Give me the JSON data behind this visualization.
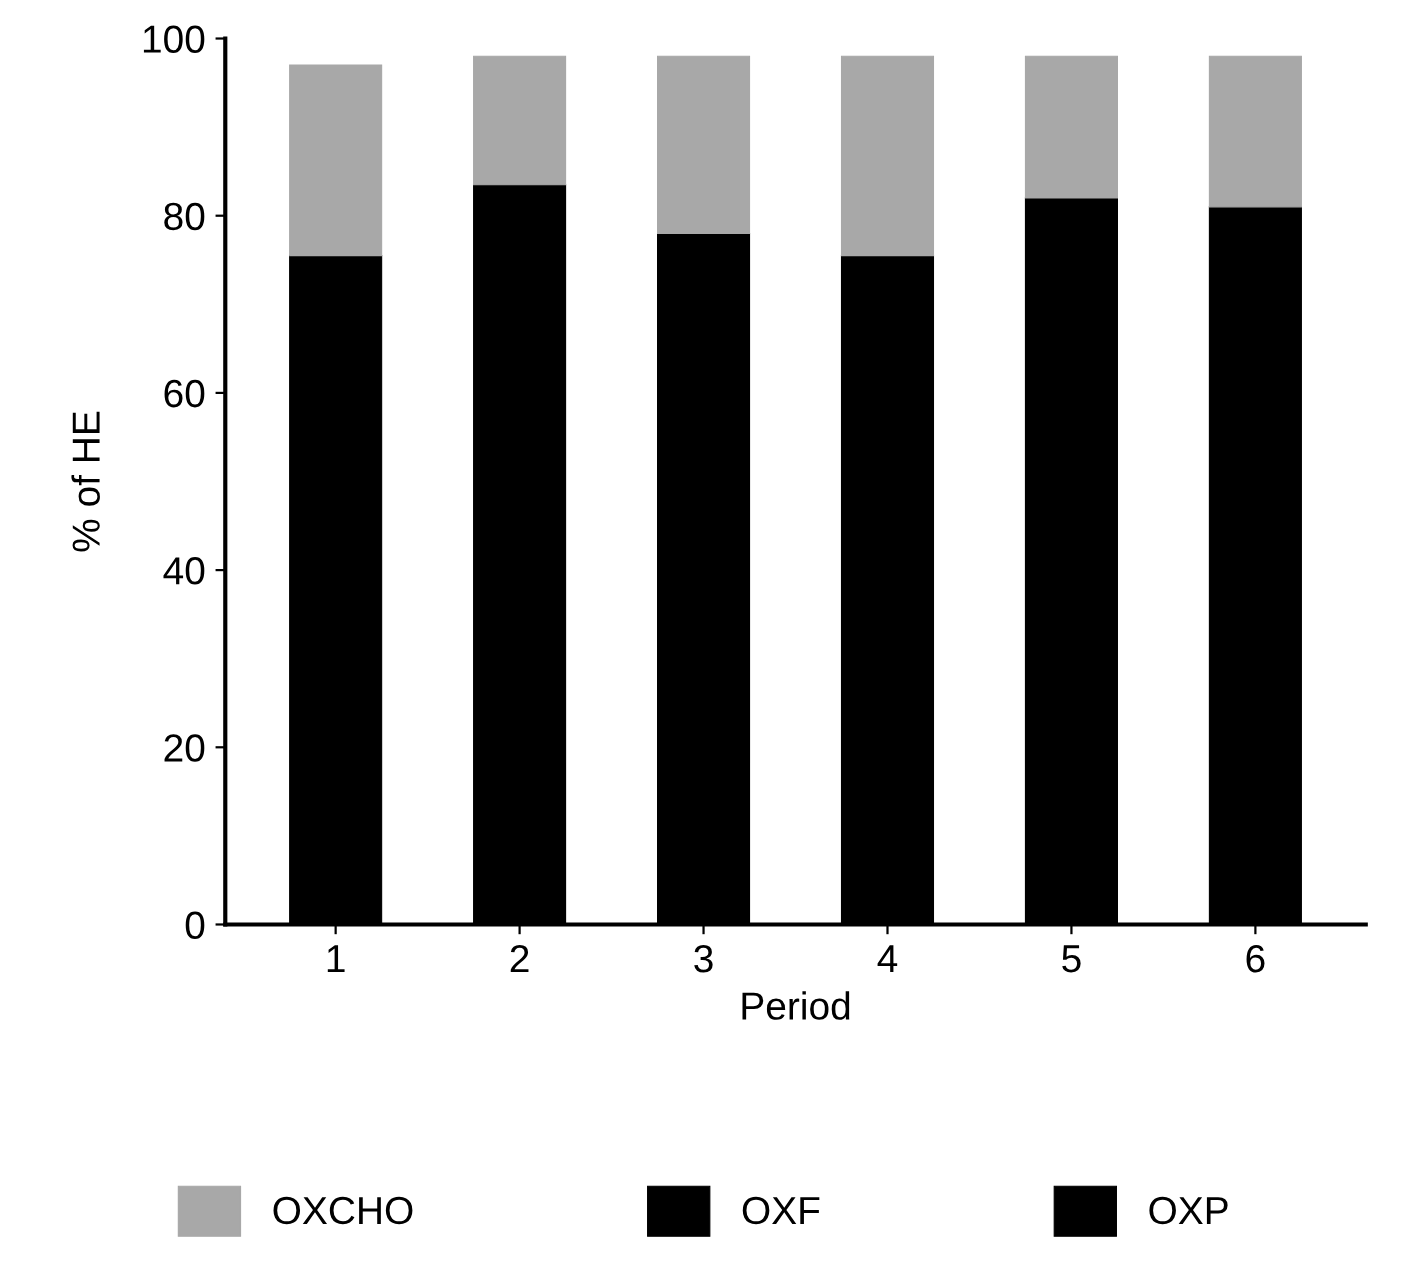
{
  "chart_data": {
    "type": "bar",
    "stacked": true,
    "xlabel": "Period",
    "ylabel": "% of HE",
    "categories": [
      "1",
      "2",
      "3",
      "4",
      "5",
      "6"
    ],
    "series": [
      {
        "name": "OXP",
        "color": "#000000",
        "values": [
          null,
          null,
          null,
          null,
          null,
          null
        ]
      },
      {
        "name": "OXF",
        "color": "#000000",
        "values": [
          75.5,
          83.5,
          78,
          75.5,
          82,
          81
        ]
      },
      {
        "name": "OXCHO",
        "color": "#a8a8a8",
        "values": [
          21.5,
          14.5,
          20,
          22.5,
          16,
          17
        ]
      }
    ],
    "ylim": [
      0,
      100
    ],
    "yticks": [
      0,
      20,
      40,
      60,
      80,
      100
    ],
    "grid": false,
    "legend": "bottom"
  }
}
